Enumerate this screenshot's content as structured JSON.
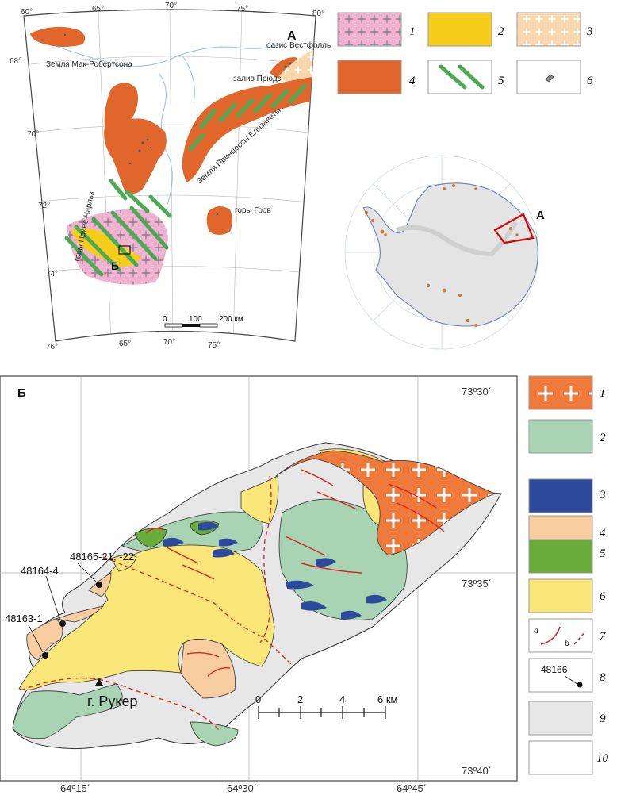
{
  "colors": {
    "granite": "#f07a3c",
    "granite_pink": "#f1b2d2",
    "yellow": "#fbe67a",
    "yellow_strong": "#f7cd1c",
    "peach": "#f8cda0",
    "orange_brown": "#e0662c",
    "green_light": "#a8d4b4",
    "green_dark": "#6aac3c",
    "blue": "#2d4a9c",
    "grey": "#e7e7e7",
    "dyke_green": "#4caa55",
    "fault_red": "#e02020",
    "frame_red": "#e00000",
    "river_blue": "#9ac4e8"
  },
  "mapA": {
    "letter": "А",
    "lon_top": [
      "60°",
      "65°",
      "70°",
      "75°",
      "80°"
    ],
    "lat_left": [
      "68°",
      "70°",
      "72°",
      "74°",
      "76°"
    ],
    "lon_bottom": [
      "65°",
      "70°",
      "75°"
    ],
    "places": {
      "macrobertson": "Земля Мак-Робертсона",
      "vestfold": "оазис Вестфолль",
      "pryds": "залив Прюдс",
      "elizabeth": "Земля Принцессы Елизаветы",
      "charles": "горы Принс-Чарльз",
      "grove": "горы Гров",
      "b_marker": "Б"
    },
    "scale": {
      "labels": [
        "0",
        "100",
        "200 км"
      ]
    },
    "legend": [
      {
        "num": "1",
        "icon": "pink-cross-hatch-swatch"
      },
      {
        "num": "2",
        "icon": "yellow-swatch"
      },
      {
        "num": "3",
        "icon": "peach-cross-hatch-swatch"
      },
      {
        "num": "4",
        "icon": "orange-brown-swatch"
      },
      {
        "num": "5",
        "icon": "green-dyke-lines-swatch"
      },
      {
        "num": "6",
        "icon": "outcrop-symbol-swatch"
      }
    ]
  },
  "inset": {
    "letter": "А"
  },
  "mapB": {
    "letter": "Б",
    "lat_right": [
      "73º30´",
      "73º35´",
      "73º40´"
    ],
    "lon_bottom": [
      "64º15´",
      "64º30´",
      "64º45´"
    ],
    "samples": [
      "48165-21, -22",
      "48164-4",
      "48163-1"
    ],
    "peak": "г. Рукер",
    "scale": {
      "labels": [
        "0",
        "2",
        "4",
        "6 км"
      ]
    },
    "legend": [
      {
        "num": "1",
        "icon": "granite-cross-swatch"
      },
      {
        "num": "2",
        "icon": "light-green-swatch"
      },
      {
        "num": "3",
        "icon": "blue-swatch"
      },
      {
        "num": "4",
        "icon": "peach-swatch"
      },
      {
        "num": "5",
        "icon": "dark-green-swatch"
      },
      {
        "num": "6",
        "icon": "yellow-swatch"
      },
      {
        "num": "7",
        "a": "а",
        "b": "б",
        "icon": "fault-lines-swatch"
      },
      {
        "num": "8",
        "sample": "48166",
        "icon": "sample-point-swatch"
      },
      {
        "num": "9",
        "icon": "grey-swatch"
      },
      {
        "num": "10",
        "icon": "white-swatch"
      }
    ]
  }
}
